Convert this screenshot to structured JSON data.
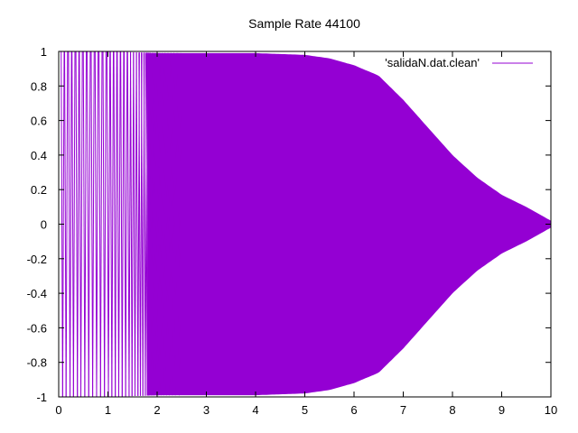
{
  "chart_data": {
    "type": "line",
    "title": "Sample Rate 44100",
    "xlabel": "",
    "ylabel": "",
    "xlim": [
      0,
      10
    ],
    "ylim": [
      -1,
      1
    ],
    "x_ticks": [
      "0",
      "1",
      "2",
      "3",
      "4",
      "5",
      "6",
      "7",
      "8",
      "9",
      "10"
    ],
    "y_ticks": [
      "1",
      "0.8",
      "0.6",
      "0.4",
      "0.2",
      "0",
      "-0.2",
      "-0.4",
      "-0.6",
      "-0.8",
      "-1"
    ],
    "grid": false,
    "legend_position": "top-right",
    "series": [
      {
        "name": "'salidaN.dat.clean'",
        "color": "#9400d3",
        "envelope_x": [
          0,
          1,
          2,
          3,
          4,
          4.5,
          5,
          5.5,
          6,
          6.5,
          7,
          7.5,
          8,
          8.5,
          9,
          9.5,
          10
        ],
        "envelope_y": [
          1,
          1,
          0.99,
          0.99,
          0.99,
          0.985,
          0.98,
          0.96,
          0.92,
          0.86,
          0.72,
          0.56,
          0.4,
          0.27,
          0.17,
          0.1,
          0.02
        ],
        "dense_from_x": 1.8,
        "sparse_spike_x": [
          0.05,
          0.12,
          0.2,
          0.27,
          0.35,
          0.42,
          0.5,
          0.58,
          0.66,
          0.74,
          0.82,
          0.9,
          0.98,
          1.05,
          1.12,
          1.19,
          1.26,
          1.33,
          1.4,
          1.46,
          1.52,
          1.58,
          1.63,
          1.68,
          1.73,
          1.77,
          1.8,
          1.86,
          1.9,
          1.96,
          2.0,
          2.05,
          2.1,
          2.16,
          2.22,
          2.28,
          2.34,
          2.42
        ]
      }
    ]
  }
}
